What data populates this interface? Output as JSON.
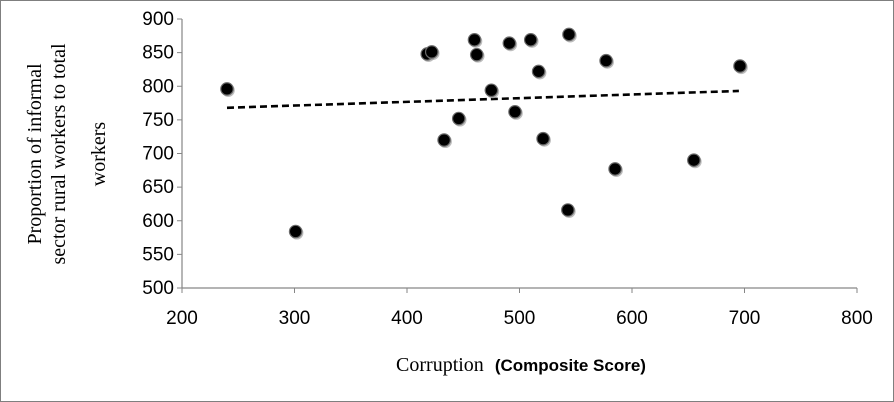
{
  "chart_data": {
    "type": "scatter",
    "title": "",
    "xlabel": "Corruption",
    "xlabel_emphasis": "(Composite Score)",
    "ylabel_lines": [
      "Proportion of informal",
      "sector rural workers to total",
      "workers"
    ],
    "xlim": [
      200,
      800
    ],
    "ylim": [
      500,
      900
    ],
    "x_ticks": [
      200,
      300,
      400,
      500,
      600,
      700,
      800
    ],
    "y_ticks": [
      500,
      550,
      600,
      650,
      700,
      750,
      800,
      850,
      900
    ],
    "grid": false,
    "legend": "none",
    "marker_color": "#000000",
    "trendline": {
      "style": "dashed",
      "color": "#000000",
      "points": [
        [
          240,
          768
        ],
        [
          695,
          793
        ]
      ]
    },
    "points": [
      {
        "x": 240,
        "y": 796
      },
      {
        "x": 301,
        "y": 584
      },
      {
        "x": 418,
        "y": 848
      },
      {
        "x": 422,
        "y": 851
      },
      {
        "x": 433,
        "y": 720
      },
      {
        "x": 446,
        "y": 752
      },
      {
        "x": 460,
        "y": 869
      },
      {
        "x": 462,
        "y": 847
      },
      {
        "x": 475,
        "y": 794
      },
      {
        "x": 491,
        "y": 864
      },
      {
        "x": 496,
        "y": 762
      },
      {
        "x": 510,
        "y": 869
      },
      {
        "x": 517,
        "y": 822
      },
      {
        "x": 521,
        "y": 722
      },
      {
        "x": 543,
        "y": 616
      },
      {
        "x": 544,
        "y": 877
      },
      {
        "x": 577,
        "y": 838
      },
      {
        "x": 585,
        "y": 677
      },
      {
        "x": 655,
        "y": 690
      },
      {
        "x": 696,
        "y": 830
      }
    ]
  }
}
